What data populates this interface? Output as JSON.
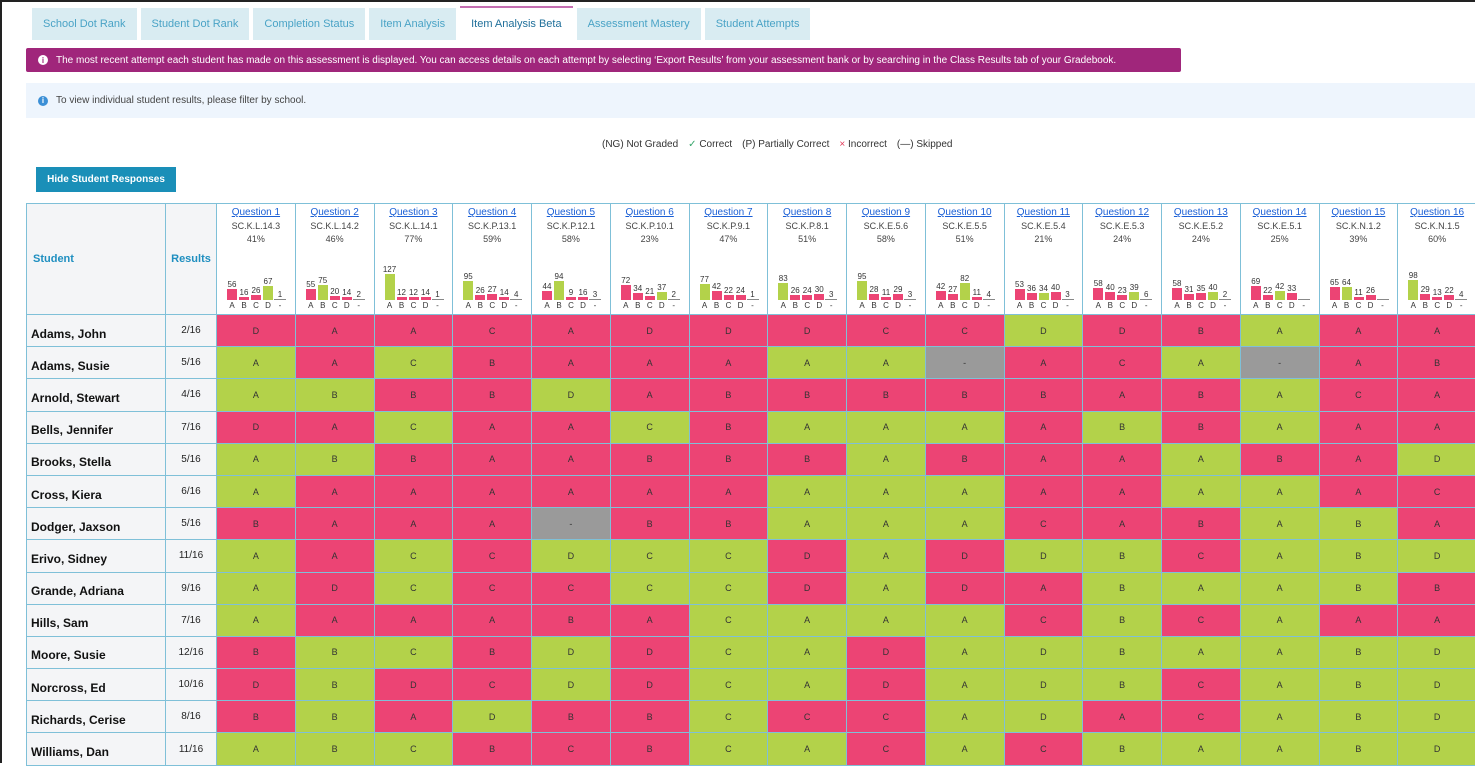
{
  "tabs": [
    {
      "label": "School Dot Rank"
    },
    {
      "label": "Student Dot Rank"
    },
    {
      "label": "Completion Status"
    },
    {
      "label": "Item Analysis"
    },
    {
      "label": "Item Analysis Beta",
      "active": true
    },
    {
      "label": "Assessment Mastery"
    },
    {
      "label": "Student Attempts"
    }
  ],
  "alert": {
    "icon": "info-icon",
    "text": "The most recent attempt each student has made on this assessment is displayed. You can access details on each attempt by selecting ‘Export Results’ from your assessment bank or by searching in the Class Results tab of your Gradebook."
  },
  "info": {
    "icon": "info-icon",
    "text": "To view individual student results, please filter by school."
  },
  "legend": {
    "not_graded": "(NG) Not Graded",
    "correct_mark": "✓",
    "correct": "Correct",
    "partial": "(P) Partially Correct",
    "incorrect_mark": "×",
    "incorrect": "Incorrect",
    "skipped": "(—) Skipped"
  },
  "hide_button": "Hide Student Responses",
  "colors": {
    "correct": "#b3d24a",
    "incorrect": "#ec4474",
    "skipped": "#9a9a9a",
    "alert": "#a0267b",
    "button": "#1a8fb8"
  },
  "table": {
    "student_header": "Student",
    "results_header": "Results",
    "option_labels": [
      "A",
      "B",
      "C",
      "D",
      "-"
    ],
    "questions": [
      {
        "label": "Question 1",
        "standard": "SC.K.L.14.3",
        "percent": "41%",
        "correct": "D",
        "counts": [
          56,
          16,
          26,
          67,
          1
        ]
      },
      {
        "label": "Question 2",
        "standard": "SC.K.L.14.2",
        "percent": "46%",
        "correct": "B",
        "counts": [
          55,
          75,
          20,
          14,
          2
        ]
      },
      {
        "label": "Question 3",
        "standard": "SC.K.L.14.1",
        "percent": "77%",
        "correct": "A",
        "counts": [
          127,
          12,
          12,
          14,
          1
        ]
      },
      {
        "label": "Question 4",
        "standard": "SC.K.P.13.1",
        "percent": "59%",
        "correct": "A",
        "counts": [
          95,
          26,
          27,
          14,
          4
        ]
      },
      {
        "label": "Question 5",
        "standard": "SC.K.P.12.1",
        "percent": "58%",
        "correct": "B",
        "counts": [
          44,
          94,
          9,
          16,
          3
        ]
      },
      {
        "label": "Question 6",
        "standard": "SC.K.P.10.1",
        "percent": "23%",
        "correct": "D",
        "counts": [
          72,
          34,
          21,
          37,
          2
        ]
      },
      {
        "label": "Question 7",
        "standard": "SC.K.P.9.1",
        "percent": "47%",
        "correct": "A",
        "counts": [
          77,
          42,
          22,
          24,
          1
        ]
      },
      {
        "label": "Question 8",
        "standard": "SC.K.P.8.1",
        "percent": "51%",
        "correct": "A",
        "counts": [
          83,
          26,
          24,
          30,
          3
        ]
      },
      {
        "label": "Question 9",
        "standard": "SC.K.E.5.6",
        "percent": "58%",
        "correct": "A",
        "counts": [
          95,
          28,
          11,
          29,
          3
        ]
      },
      {
        "label": "Question 10",
        "standard": "SC.K.E.5.5",
        "percent": "51%",
        "correct": "C",
        "counts": [
          42,
          27,
          82,
          11,
          4
        ]
      },
      {
        "label": "Question 11",
        "standard": "SC.K.E.5.4",
        "percent": "21%",
        "correct": "C",
        "counts": [
          53,
          36,
          34,
          40,
          3
        ]
      },
      {
        "label": "Question 12",
        "standard": "SC.K.E.5.3",
        "percent": "24%",
        "correct": "D",
        "counts": [
          58,
          40,
          23,
          39,
          6
        ]
      },
      {
        "label": "Question 13",
        "standard": "SC.K.E.5.2",
        "percent": "24%",
        "correct": "D",
        "counts": [
          58,
          31,
          35,
          40,
          2
        ]
      },
      {
        "label": "Question 14",
        "standard": "SC.K.E.5.1",
        "percent": "25%",
        "correct": "C",
        "counts": [
          69,
          22,
          42,
          33,
          null
        ]
      },
      {
        "label": "Question 15",
        "standard": "SC.K.N.1.2",
        "percent": "39%",
        "correct": "B",
        "counts": [
          65,
          64,
          11,
          26,
          null
        ]
      },
      {
        "label": "Question 16",
        "standard": "SC.K.N.1.5",
        "percent": "60%",
        "correct": "A",
        "counts": [
          98,
          29,
          13,
          22,
          4
        ]
      }
    ],
    "rows": [
      {
        "name": "Adams, John",
        "result": "2/16",
        "answers": [
          "D",
          "A",
          "A",
          "C",
          "A",
          "D",
          "D",
          "D",
          "C",
          "C",
          "D",
          "D",
          "B",
          "A",
          "A",
          "A"
        ],
        "status": [
          "incorrect",
          "incorrect",
          "incorrect",
          "incorrect",
          "incorrect",
          "incorrect",
          "incorrect",
          "incorrect",
          "incorrect",
          "incorrect",
          "correct",
          "incorrect",
          "incorrect",
          "correct",
          "incorrect",
          "incorrect"
        ]
      },
      {
        "name": "Adams, Susie",
        "result": "5/16",
        "answers": [
          "A",
          "A",
          "C",
          "B",
          "A",
          "A",
          "A",
          "A",
          "A",
          "-",
          "A",
          "C",
          "A",
          "-",
          "A",
          "B"
        ],
        "status": [
          "correct",
          "incorrect",
          "correct",
          "incorrect",
          "incorrect",
          "incorrect",
          "incorrect",
          "correct",
          "correct",
          "skipped",
          "incorrect",
          "incorrect",
          "correct",
          "skipped",
          "incorrect",
          "incorrect"
        ]
      },
      {
        "name": "Arnold, Stewart",
        "result": "4/16",
        "answers": [
          "A",
          "B",
          "B",
          "B",
          "D",
          "A",
          "B",
          "B",
          "B",
          "B",
          "B",
          "A",
          "B",
          "A",
          "C",
          "A"
        ],
        "status": [
          "correct",
          "correct",
          "incorrect",
          "incorrect",
          "correct",
          "incorrect",
          "incorrect",
          "incorrect",
          "incorrect",
          "incorrect",
          "incorrect",
          "incorrect",
          "incorrect",
          "correct",
          "incorrect",
          "incorrect"
        ]
      },
      {
        "name": "Bells, Jennifer",
        "result": "7/16",
        "answers": [
          "D",
          "A",
          "C",
          "A",
          "A",
          "C",
          "B",
          "A",
          "A",
          "A",
          "A",
          "B",
          "B",
          "A",
          "A",
          "A"
        ],
        "status": [
          "incorrect",
          "incorrect",
          "correct",
          "incorrect",
          "incorrect",
          "correct",
          "incorrect",
          "correct",
          "correct",
          "correct",
          "incorrect",
          "correct",
          "incorrect",
          "correct",
          "incorrect",
          "incorrect"
        ]
      },
      {
        "name": "Brooks, Stella",
        "result": "5/16",
        "answers": [
          "A",
          "B",
          "B",
          "A",
          "A",
          "B",
          "B",
          "B",
          "A",
          "B",
          "A",
          "A",
          "A",
          "B",
          "A",
          "D"
        ],
        "status": [
          "correct",
          "correct",
          "incorrect",
          "incorrect",
          "incorrect",
          "incorrect",
          "incorrect",
          "incorrect",
          "correct",
          "incorrect",
          "incorrect",
          "incorrect",
          "correct",
          "incorrect",
          "incorrect",
          "correct"
        ]
      },
      {
        "name": "Cross, Kiera",
        "result": "6/16",
        "answers": [
          "A",
          "A",
          "A",
          "A",
          "A",
          "A",
          "A",
          "A",
          "A",
          "A",
          "A",
          "A",
          "A",
          "A",
          "A",
          "C"
        ],
        "status": [
          "correct",
          "incorrect",
          "incorrect",
          "incorrect",
          "incorrect",
          "incorrect",
          "incorrect",
          "correct",
          "correct",
          "correct",
          "incorrect",
          "incorrect",
          "correct",
          "correct",
          "incorrect",
          "incorrect"
        ]
      },
      {
        "name": "Dodger, Jaxson",
        "result": "5/16",
        "answers": [
          "B",
          "A",
          "A",
          "A",
          "-",
          "B",
          "B",
          "A",
          "A",
          "A",
          "C",
          "A",
          "B",
          "A",
          "B",
          "A"
        ],
        "status": [
          "incorrect",
          "incorrect",
          "incorrect",
          "incorrect",
          "skipped",
          "incorrect",
          "incorrect",
          "correct",
          "correct",
          "correct",
          "incorrect",
          "incorrect",
          "incorrect",
          "correct",
          "correct",
          "incorrect"
        ]
      },
      {
        "name": "Erivo, Sidney",
        "result": "11/16",
        "answers": [
          "A",
          "A",
          "C",
          "C",
          "D",
          "C",
          "C",
          "D",
          "A",
          "D",
          "D",
          "B",
          "C",
          "A",
          "B",
          "D"
        ],
        "status": [
          "correct",
          "incorrect",
          "correct",
          "incorrect",
          "correct",
          "correct",
          "correct",
          "incorrect",
          "correct",
          "incorrect",
          "correct",
          "correct",
          "incorrect",
          "correct",
          "correct",
          "correct"
        ]
      },
      {
        "name": "Grande, Adriana",
        "result": "9/16",
        "answers": [
          "A",
          "D",
          "C",
          "C",
          "C",
          "C",
          "C",
          "D",
          "A",
          "D",
          "A",
          "B",
          "A",
          "A",
          "B",
          "B"
        ],
        "status": [
          "correct",
          "incorrect",
          "correct",
          "incorrect",
          "incorrect",
          "correct",
          "correct",
          "incorrect",
          "correct",
          "incorrect",
          "incorrect",
          "correct",
          "correct",
          "correct",
          "correct",
          "incorrect"
        ]
      },
      {
        "name": "Hills, Sam",
        "result": "7/16",
        "answers": [
          "A",
          "A",
          "A",
          "A",
          "B",
          "A",
          "C",
          "A",
          "A",
          "A",
          "C",
          "B",
          "C",
          "A",
          "A",
          "A"
        ],
        "status": [
          "correct",
          "incorrect",
          "incorrect",
          "incorrect",
          "incorrect",
          "incorrect",
          "correct",
          "correct",
          "correct",
          "correct",
          "incorrect",
          "correct",
          "incorrect",
          "correct",
          "incorrect",
          "incorrect"
        ]
      },
      {
        "name": "Moore, Susie",
        "result": "12/16",
        "answers": [
          "B",
          "B",
          "C",
          "B",
          "D",
          "D",
          "C",
          "A",
          "D",
          "A",
          "D",
          "B",
          "A",
          "A",
          "B",
          "D"
        ],
        "status": [
          "incorrect",
          "correct",
          "correct",
          "incorrect",
          "correct",
          "incorrect",
          "correct",
          "correct",
          "incorrect",
          "correct",
          "correct",
          "correct",
          "correct",
          "correct",
          "correct",
          "correct"
        ]
      },
      {
        "name": "Norcross, Ed",
        "result": "10/16",
        "answers": [
          "D",
          "B",
          "D",
          "C",
          "D",
          "D",
          "C",
          "A",
          "D",
          "A",
          "D",
          "B",
          "C",
          "A",
          "B",
          "D"
        ],
        "status": [
          "incorrect",
          "correct",
          "incorrect",
          "incorrect",
          "correct",
          "incorrect",
          "correct",
          "correct",
          "incorrect",
          "correct",
          "correct",
          "correct",
          "incorrect",
          "correct",
          "correct",
          "correct"
        ]
      },
      {
        "name": "Richards, Cerise",
        "result": "8/16",
        "answers": [
          "B",
          "B",
          "A",
          "D",
          "B",
          "B",
          "C",
          "C",
          "C",
          "A",
          "D",
          "A",
          "C",
          "A",
          "B",
          "D"
        ],
        "status": [
          "incorrect",
          "correct",
          "incorrect",
          "correct",
          "incorrect",
          "incorrect",
          "correct",
          "incorrect",
          "incorrect",
          "correct",
          "correct",
          "incorrect",
          "incorrect",
          "correct",
          "correct",
          "correct"
        ]
      },
      {
        "name": "Williams, Dan",
        "result": "11/16",
        "answers": [
          "A",
          "B",
          "C",
          "B",
          "C",
          "B",
          "C",
          "A",
          "C",
          "A",
          "C",
          "B",
          "A",
          "A",
          "B",
          "D"
        ],
        "status": [
          "correct",
          "correct",
          "correct",
          "incorrect",
          "incorrect",
          "incorrect",
          "correct",
          "correct",
          "incorrect",
          "correct",
          "incorrect",
          "correct",
          "correct",
          "correct",
          "correct",
          "correct"
        ]
      }
    ]
  }
}
